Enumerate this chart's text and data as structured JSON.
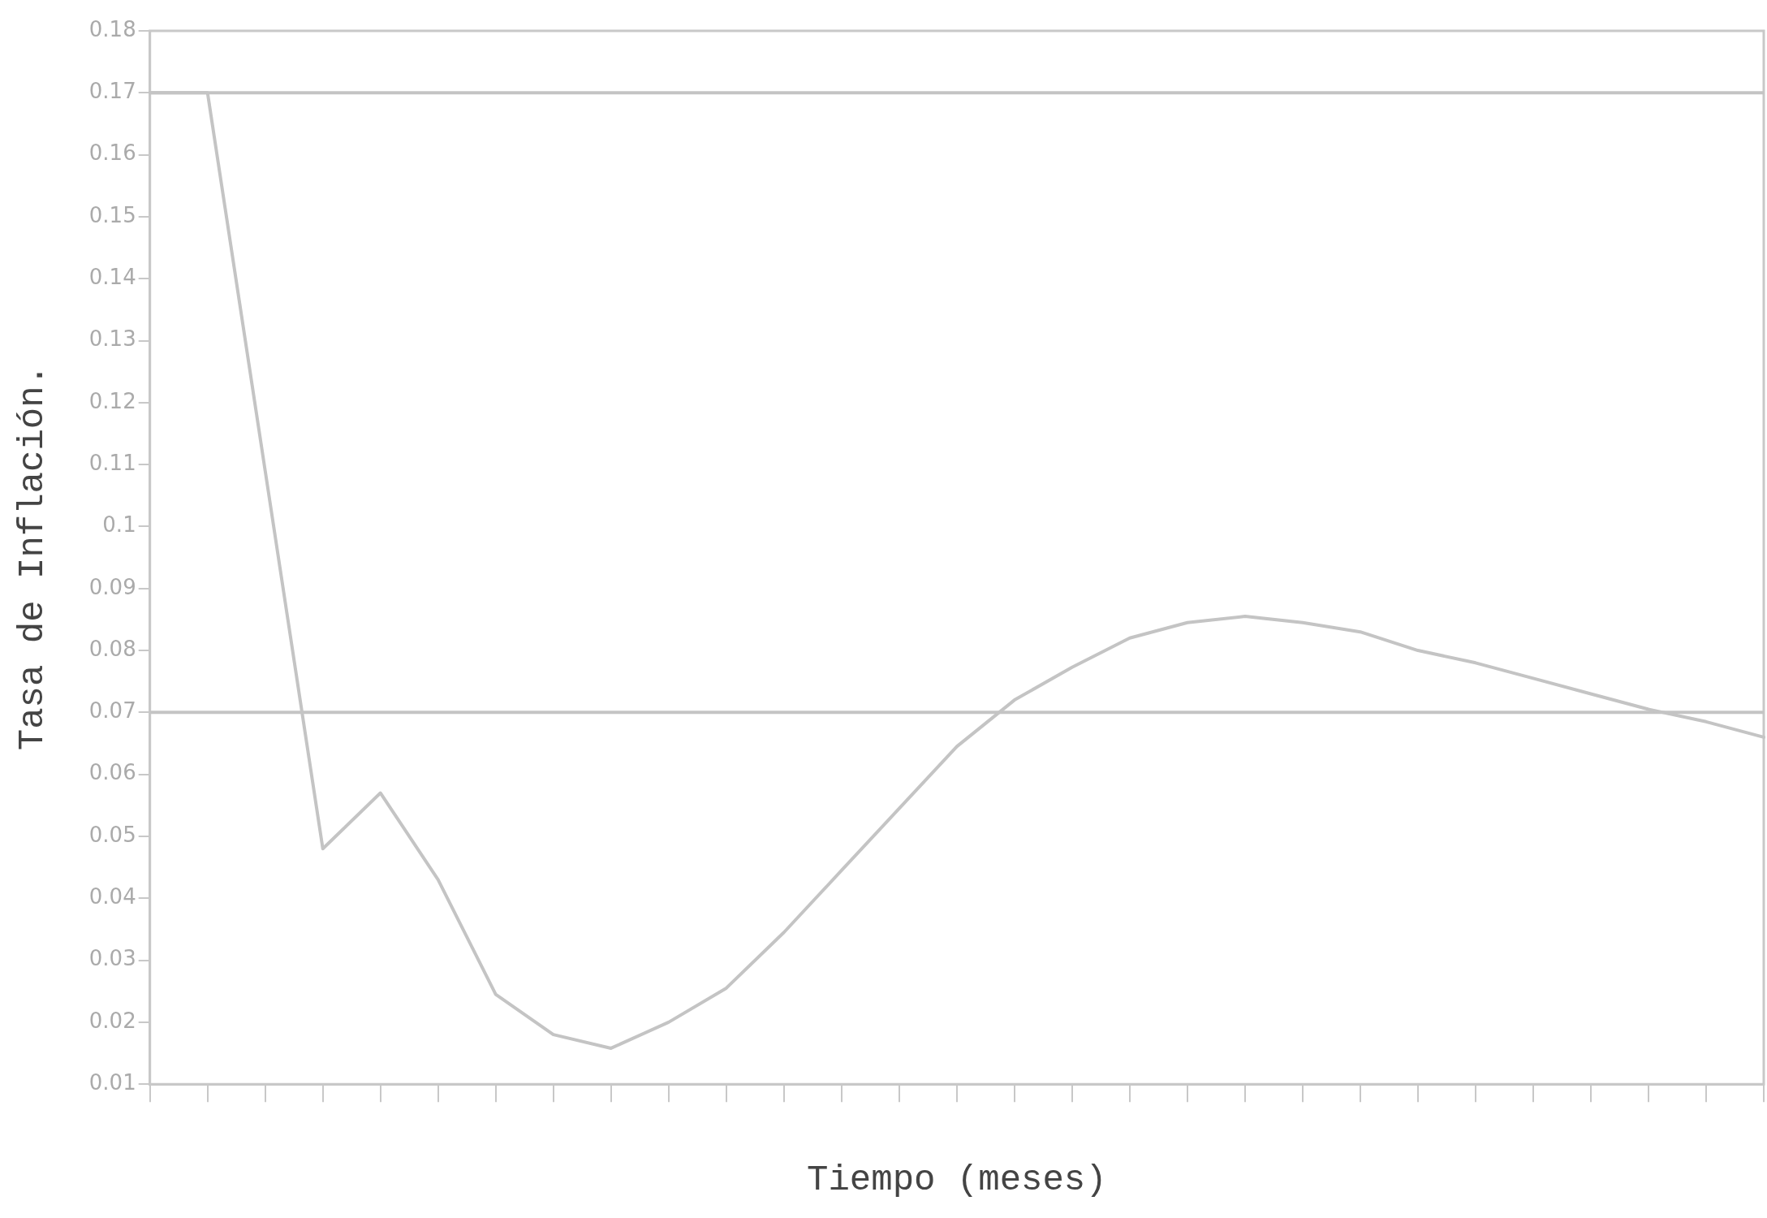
{
  "chart_data": {
    "type": "line",
    "xlabel": "Tiempo (meses)",
    "ylabel": "Tasa de Inflación.",
    "categories": [
      null,
      null,
      null,
      null,
      null,
      null,
      null,
      null,
      null,
      null,
      null,
      null,
      null,
      null,
      null,
      null,
      null,
      null,
      null,
      null,
      null,
      null,
      null,
      null,
      null,
      null,
      null,
      null,
      null
    ],
    "series": [
      {
        "color": "#c4c4c4",
        "values": [
          0.17,
          0.17,
          0.109,
          0.048,
          0.057,
          0.043,
          0.0245,
          0.018,
          0.0158,
          0.02,
          0.0255,
          0.0345,
          0.0445,
          0.0545,
          0.0645,
          0.072,
          0.0773,
          0.082,
          0.0845,
          0.0855,
          0.0845,
          0.083,
          0.08,
          0.078,
          0.0755,
          0.073,
          0.0705,
          0.0685,
          0.066
        ]
      }
    ],
    "ylim": [
      0.01,
      0.18
    ],
    "yticks": [
      0.01,
      0.02,
      0.03,
      0.04,
      0.05,
      0.06,
      0.07,
      0.08,
      0.09,
      0.1,
      0.11,
      0.12,
      0.13,
      0.14,
      0.15,
      0.16,
      0.17,
      0.18
    ],
    "ref_lines": [
      {
        "axis": "y",
        "value": 0.17,
        "color": "#c4c4c4"
      },
      {
        "axis": "y",
        "value": 0.07,
        "color": "#c4c4c4"
      }
    ],
    "tick_labels": "y",
    "grid": false,
    "legend": false,
    "marker": "none",
    "line_style": "solid"
  }
}
